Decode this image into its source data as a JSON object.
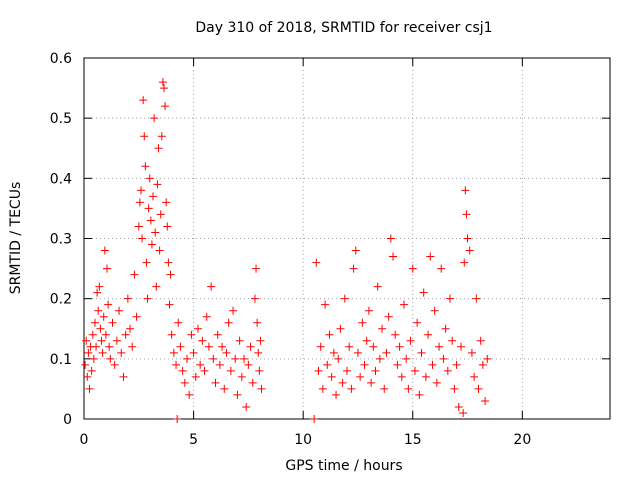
{
  "chart_data": {
    "type": "scatter",
    "title": "Day 310 of 2018, SRMTID for receiver csj1",
    "xlabel": "GPS time / hours",
    "ylabel": "SRMTID / TECUs",
    "xlim": [
      0,
      24
    ],
    "ylim": [
      0,
      0.6
    ],
    "xticks": [
      0,
      5,
      10,
      15,
      20
    ],
    "xtick_labels": [
      "0",
      "5",
      "10",
      "15",
      "20"
    ],
    "yticks": [
      0,
      0.1,
      0.2,
      0.3,
      0.4,
      0.5,
      0.6
    ],
    "ytick_labels": [
      "0",
      "0.1",
      "0.2",
      "0.3",
      "0.4",
      "0.5",
      "0.6"
    ],
    "grid": true,
    "marker": "+",
    "color": "#ff0000",
    "series": [
      {
        "name": "SRMTID",
        "points": [
          [
            0.05,
            0.09
          ],
          [
            0.1,
            0.13
          ],
          [
            0.15,
            0.07
          ],
          [
            0.2,
            0.11
          ],
          [
            0.25,
            0.05
          ],
          [
            0.3,
            0.12
          ],
          [
            0.35,
            0.08
          ],
          [
            0.4,
            0.14
          ],
          [
            0.45,
            0.1
          ],
          [
            0.5,
            0.16
          ],
          [
            0.55,
            0.12
          ],
          [
            0.6,
            0.21
          ],
          [
            0.65,
            0.18
          ],
          [
            0.7,
            0.22
          ],
          [
            0.75,
            0.15
          ],
          [
            0.8,
            0.13
          ],
          [
            0.85,
            0.11
          ],
          [
            0.9,
            0.17
          ],
          [
            0.95,
            0.28
          ],
          [
            1.0,
            0.14
          ],
          [
            1.05,
            0.25
          ],
          [
            1.1,
            0.19
          ],
          [
            1.15,
            0.12
          ],
          [
            1.2,
            0.1
          ],
          [
            1.3,
            0.16
          ],
          [
            1.4,
            0.09
          ],
          [
            1.5,
            0.13
          ],
          [
            1.6,
            0.18
          ],
          [
            1.7,
            0.11
          ],
          [
            1.8,
            0.07
          ],
          [
            1.9,
            0.14
          ],
          [
            2.0,
            0.2
          ],
          [
            2.1,
            0.15
          ],
          [
            2.2,
            0.12
          ],
          [
            2.3,
            0.24
          ],
          [
            2.4,
            0.17
          ],
          [
            2.5,
            0.32
          ],
          [
            2.55,
            0.36
          ],
          [
            2.6,
            0.38
          ],
          [
            2.65,
            0.3
          ],
          [
            2.7,
            0.53
          ],
          [
            2.75,
            0.47
          ],
          [
            2.8,
            0.42
          ],
          [
            2.85,
            0.26
          ],
          [
            2.9,
            0.2
          ],
          [
            2.95,
            0.35
          ],
          [
            3.0,
            0.4
          ],
          [
            3.05,
            0.33
          ],
          [
            3.1,
            0.29
          ],
          [
            3.15,
            0.37
          ],
          [
            3.2,
            0.5
          ],
          [
            3.25,
            0.31
          ],
          [
            3.3,
            0.22
          ],
          [
            3.35,
            0.39
          ],
          [
            3.4,
            0.45
          ],
          [
            3.45,
            0.28
          ],
          [
            3.5,
            0.34
          ],
          [
            3.55,
            0.47
          ],
          [
            3.6,
            0.56
          ],
          [
            3.65,
            0.55
          ],
          [
            3.7,
            0.52
          ],
          [
            3.75,
            0.36
          ],
          [
            3.8,
            0.32
          ],
          [
            3.85,
            0.26
          ],
          [
            3.9,
            0.19
          ],
          [
            3.95,
            0.24
          ],
          [
            4.0,
            0.14
          ],
          [
            4.1,
            0.11
          ],
          [
            4.2,
            0.09
          ],
          [
            4.25,
            0.0
          ],
          [
            4.3,
            0.16
          ],
          [
            4.4,
            0.12
          ],
          [
            4.5,
            0.08
          ],
          [
            4.6,
            0.06
          ],
          [
            4.7,
            0.1
          ],
          [
            4.8,
            0.04
          ],
          [
            4.9,
            0.14
          ],
          [
            5.0,
            0.11
          ],
          [
            5.1,
            0.07
          ],
          [
            5.2,
            0.15
          ],
          [
            5.3,
            0.09
          ],
          [
            5.4,
            0.13
          ],
          [
            5.5,
            0.08
          ],
          [
            5.6,
            0.17
          ],
          [
            5.7,
            0.12
          ],
          [
            5.8,
            0.22
          ],
          [
            5.9,
            0.1
          ],
          [
            6.0,
            0.06
          ],
          [
            6.1,
            0.14
          ],
          [
            6.2,
            0.09
          ],
          [
            6.3,
            0.12
          ],
          [
            6.4,
            0.05
          ],
          [
            6.5,
            0.11
          ],
          [
            6.6,
            0.16
          ],
          [
            6.7,
            0.08
          ],
          [
            6.8,
            0.18
          ],
          [
            6.9,
            0.1
          ],
          [
            7.0,
            0.04
          ],
          [
            7.1,
            0.13
          ],
          [
            7.2,
            0.07
          ],
          [
            7.3,
            0.1
          ],
          [
            7.4,
            0.02
          ],
          [
            7.5,
            0.09
          ],
          [
            7.6,
            0.12
          ],
          [
            7.7,
            0.06
          ],
          [
            7.8,
            0.2
          ],
          [
            7.85,
            0.25
          ],
          [
            7.9,
            0.16
          ],
          [
            7.95,
            0.11
          ],
          [
            8.0,
            0.08
          ],
          [
            8.05,
            0.13
          ],
          [
            8.1,
            0.05
          ],
          [
            10.5,
            0.0
          ],
          [
            10.6,
            0.26
          ],
          [
            10.7,
            0.08
          ],
          [
            10.8,
            0.12
          ],
          [
            10.9,
            0.05
          ],
          [
            11.0,
            0.19
          ],
          [
            11.1,
            0.09
          ],
          [
            11.2,
            0.14
          ],
          [
            11.3,
            0.07
          ],
          [
            11.4,
            0.11
          ],
          [
            11.5,
            0.04
          ],
          [
            11.6,
            0.1
          ],
          [
            11.7,
            0.15
          ],
          [
            11.8,
            0.06
          ],
          [
            11.9,
            0.2
          ],
          [
            12.0,
            0.08
          ],
          [
            12.1,
            0.12
          ],
          [
            12.2,
            0.05
          ],
          [
            12.3,
            0.25
          ],
          [
            12.4,
            0.28
          ],
          [
            12.5,
            0.11
          ],
          [
            12.6,
            0.07
          ],
          [
            12.7,
            0.16
          ],
          [
            12.8,
            0.09
          ],
          [
            12.9,
            0.13
          ],
          [
            13.0,
            0.18
          ],
          [
            13.1,
            0.06
          ],
          [
            13.2,
            0.12
          ],
          [
            13.3,
            0.08
          ],
          [
            13.4,
            0.22
          ],
          [
            13.5,
            0.1
          ],
          [
            13.6,
            0.15
          ],
          [
            13.7,
            0.05
          ],
          [
            13.8,
            0.11
          ],
          [
            13.9,
            0.17
          ],
          [
            14.0,
            0.3
          ],
          [
            14.1,
            0.27
          ],
          [
            14.2,
            0.14
          ],
          [
            14.3,
            0.09
          ],
          [
            14.4,
            0.12
          ],
          [
            14.5,
            0.07
          ],
          [
            14.6,
            0.19
          ],
          [
            14.7,
            0.1
          ],
          [
            14.8,
            0.05
          ],
          [
            14.9,
            0.13
          ],
          [
            15.0,
            0.25
          ],
          [
            15.1,
            0.08
          ],
          [
            15.2,
            0.16
          ],
          [
            15.3,
            0.04
          ],
          [
            15.4,
            0.11
          ],
          [
            15.5,
            0.21
          ],
          [
            15.6,
            0.07
          ],
          [
            15.7,
            0.14
          ],
          [
            15.8,
            0.27
          ],
          [
            15.9,
            0.09
          ],
          [
            16.0,
            0.18
          ],
          [
            16.1,
            0.06
          ],
          [
            16.2,
            0.12
          ],
          [
            16.3,
            0.25
          ],
          [
            16.4,
            0.1
          ],
          [
            16.5,
            0.15
          ],
          [
            16.6,
            0.08
          ],
          [
            16.7,
            0.2
          ],
          [
            16.8,
            0.13
          ],
          [
            16.9,
            0.05
          ],
          [
            17.0,
            0.09
          ],
          [
            17.1,
            0.02
          ],
          [
            17.2,
            0.12
          ],
          [
            17.3,
            0.01
          ],
          [
            17.35,
            0.26
          ],
          [
            17.4,
            0.38
          ],
          [
            17.45,
            0.34
          ],
          [
            17.5,
            0.3
          ],
          [
            17.6,
            0.28
          ],
          [
            17.7,
            0.11
          ],
          [
            17.8,
            0.07
          ],
          [
            17.9,
            0.2
          ],
          [
            18.0,
            0.05
          ],
          [
            18.1,
            0.13
          ],
          [
            18.2,
            0.09
          ],
          [
            18.3,
            0.03
          ],
          [
            18.4,
            0.1
          ]
        ]
      }
    ]
  }
}
